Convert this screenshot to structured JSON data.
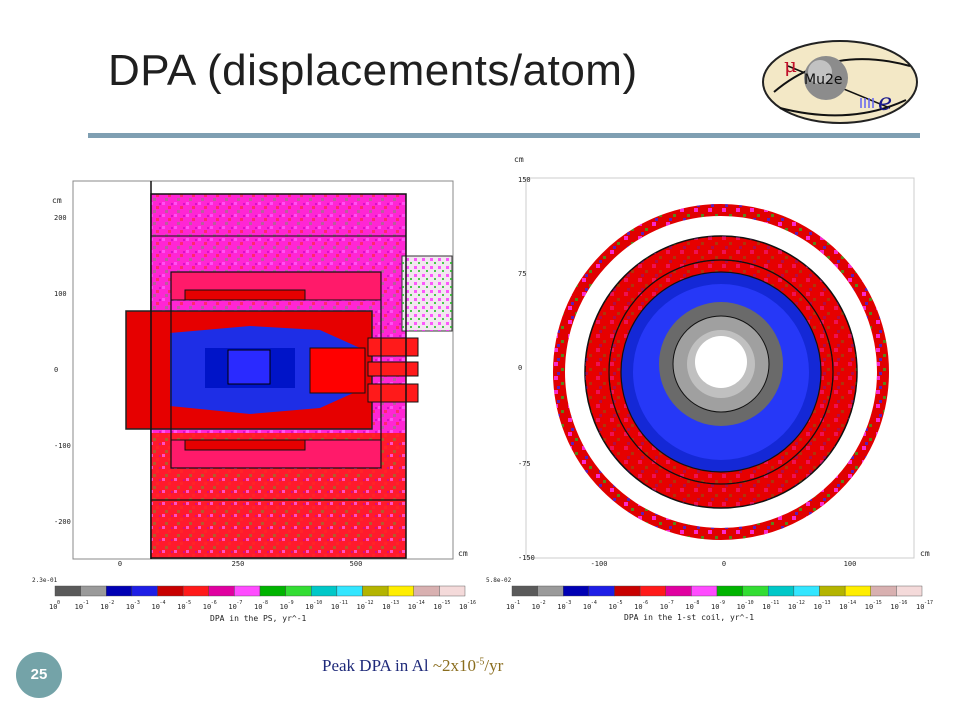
{
  "slide": {
    "title": "DPA (displacements/atom)",
    "number": "25",
    "caption_prefix": "Peak DPA in Al ",
    "caption_value_base": "~2x10",
    "caption_value_exp": "-5",
    "caption_value_unit": "/yr"
  },
  "logo": {
    "text": "Mu2e",
    "mu": "μ",
    "e": "e"
  },
  "colors": {
    "dpa_scale": [
      "#5a5a5a",
      "#9a9a9a",
      "#0000b4",
      "#1e1ee6",
      "#c80000",
      "#ff1a1a",
      "#e000a0",
      "#ff4cff",
      "#00b400",
      "#33dd33",
      "#00c8c8",
      "#33e6ff",
      "#b4b400",
      "#ffee00",
      "#d8b0b0",
      "#f4dada"
    ],
    "accent": "#7f9fb2",
    "slide_number_bg": "#74a3a8",
    "caption_text": "#1f2a7a",
    "caption_value": "#8a6d1e"
  },
  "chart_data": [
    {
      "type": "heatmap",
      "title": "",
      "xlabel": "cm",
      "ylabel": "cm",
      "x_ticks": [
        "0",
        "250",
        "500"
      ],
      "y_ticks": [
        "200",
        "100",
        "0",
        "-100",
        "-200"
      ],
      "colorbar": {
        "max_label": "2.3e-01",
        "exponents": [
          "0",
          "-1",
          "-2",
          "-3",
          "-4",
          "-5",
          "-6",
          "-7",
          "-8",
          "-9",
          "-10",
          "-11",
          "-12",
          "-13",
          "-14",
          "-15",
          "-16"
        ],
        "base": "10",
        "label": "DPA in the PS, yr^-1"
      }
    },
    {
      "type": "heatmap",
      "title": "",
      "xlabel": "cm",
      "ylabel": "cm",
      "x_ticks": [
        "-100",
        "0",
        "100"
      ],
      "y_ticks": [
        "150",
        "75",
        "0",
        "-75",
        "-150"
      ],
      "colorbar": {
        "max_label": "5.8e-02",
        "exponents": [
          "-1",
          "-2",
          "-3",
          "-4",
          "-5",
          "-6",
          "-7",
          "-8",
          "-9",
          "-10",
          "-11",
          "-12",
          "-13",
          "-14",
          "-15",
          "-16",
          "-17"
        ],
        "base": "10",
        "label": "DPA in the 1-st coil, yr^-1"
      }
    }
  ]
}
